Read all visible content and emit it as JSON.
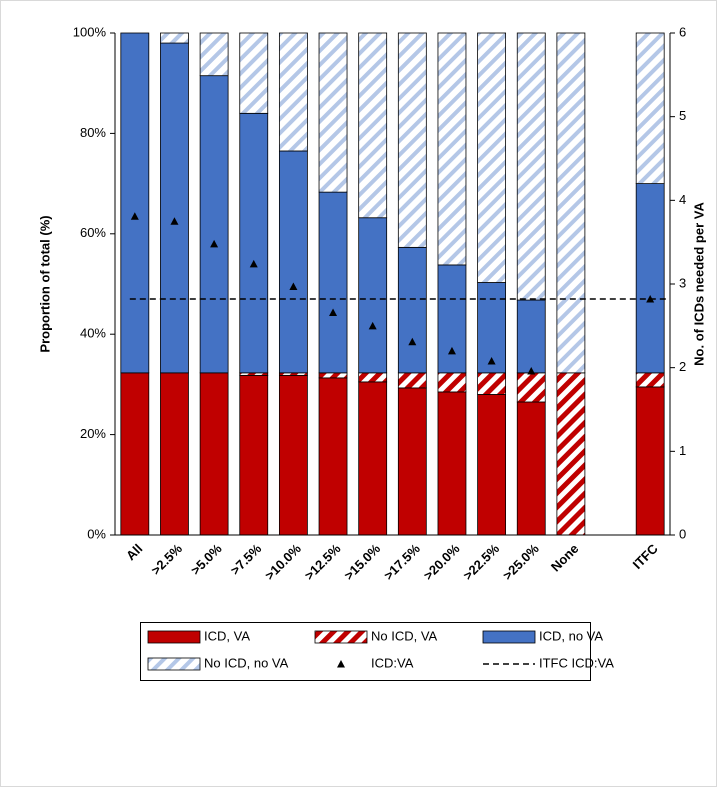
{
  "chart_data": {
    "type": "stacked_bar",
    "ylabel": "Proportion of total (%)",
    "y2label": "No. of ICDs needed per VA",
    "categories": [
      "All",
      ">2.5%",
      ">5.0%",
      ">7.5%",
      ">10.0%",
      ">12.5%",
      ">15.0%",
      ">17.5%",
      ">20.0%",
      ">22.5%",
      ">25.0%",
      "None",
      null,
      "ITFC"
    ],
    "ylim": [
      0,
      100
    ],
    "yticks": [
      {
        "value": 0,
        "label": "0%"
      },
      {
        "value": 20,
        "label": "20%"
      },
      {
        "value": 40,
        "label": "40%"
      },
      {
        "value": 60,
        "label": "60%"
      },
      {
        "value": 80,
        "label": "80%"
      },
      {
        "value": 100,
        "label": "100%"
      }
    ],
    "y2lim": [
      0,
      6
    ],
    "y2ticks": [
      0,
      1,
      2,
      3,
      4,
      5,
      6
    ],
    "series": [
      {
        "name": "ICD, VA",
        "kind": "bar",
        "color": "#c00000",
        "hatch": false,
        "values": [
          32.3,
          32.3,
          32.3,
          31.8,
          31.8,
          31.3,
          30.5,
          29.3,
          28.5,
          28.0,
          26.5,
          0,
          null,
          29.5
        ]
      },
      {
        "name": "No ICD, VA",
        "kind": "bar",
        "color": "#c00000",
        "hatch": true,
        "values": [
          0,
          0,
          0,
          0.5,
          0.5,
          1.0,
          1.8,
          3.0,
          3.8,
          4.3,
          5.8,
          32.3,
          null,
          2.8
        ]
      },
      {
        "name": "ICD, no VA",
        "kind": "bar",
        "color": "#4472c4",
        "hatch": false,
        "values": [
          67.7,
          65.7,
          59.2,
          51.7,
          44.2,
          36.0,
          30.9,
          25.0,
          21.5,
          18.0,
          14.5,
          0,
          null,
          37.7
        ]
      },
      {
        "name": "No ICD, no VA",
        "kind": "bar",
        "color": "#b4c7e7",
        "hatch": true,
        "values": [
          0,
          2.0,
          8.5,
          16.0,
          23.5,
          31.7,
          36.8,
          42.7,
          46.2,
          49.7,
          53.2,
          67.7,
          null,
          30.0
        ]
      },
      {
        "name": "ICD:VA",
        "kind": "marker",
        "axis": "y2",
        "color": "#000000",
        "values": [
          3.81,
          3.75,
          3.48,
          3.24,
          2.97,
          2.66,
          2.5,
          2.31,
          2.2,
          2.08,
          1.96,
          null,
          null,
          2.82
        ]
      },
      {
        "name": "ITFC ICD:VA",
        "kind": "hline",
        "axis": "y2",
        "color": "#000000",
        "value": 2.82
      }
    ]
  }
}
